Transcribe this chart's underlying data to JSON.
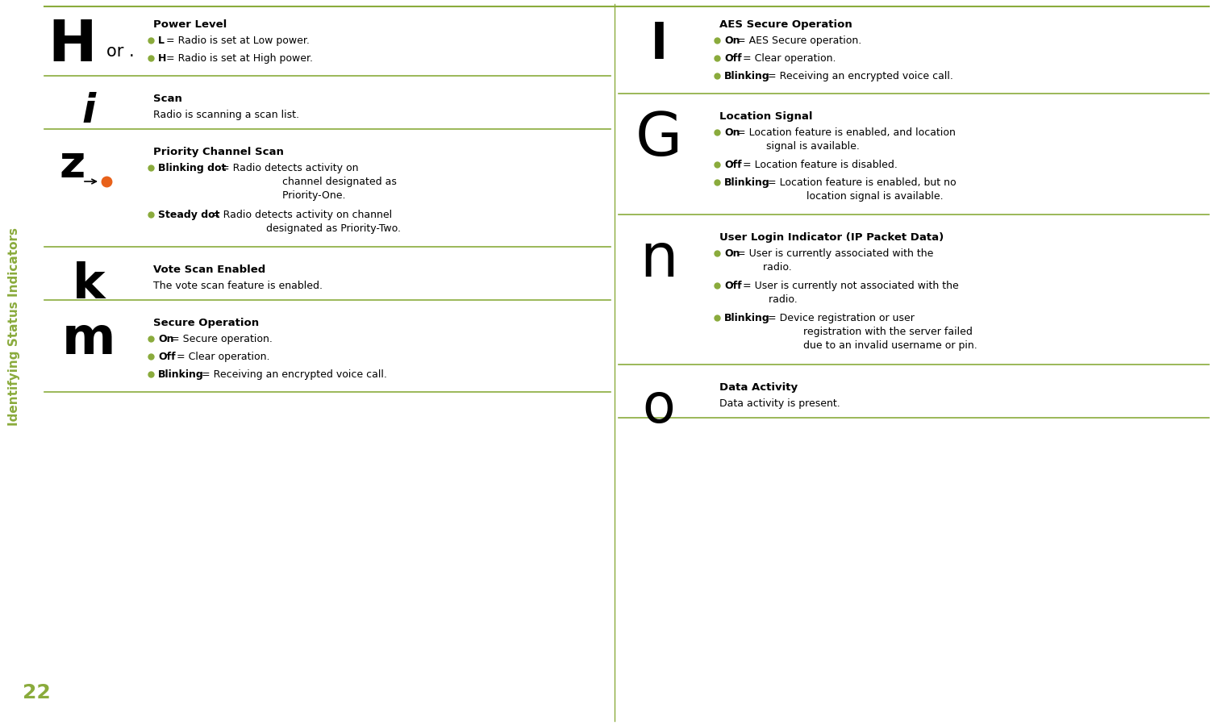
{
  "bg_color": "#ffffff",
  "green_color": "#8aab3c",
  "black_color": "#000000",
  "orange_color": "#e8611a",
  "sidebar_text": "Identifying Status Indicators",
  "page_number": "22",
  "figw": 15.09,
  "figh": 8.99,
  "dpi": 100,
  "left_entries": [
    {
      "icon": "H",
      "icon2": "or .",
      "icon_size": 52,
      "icon2_size": 16,
      "icon_bold": true,
      "title": "Power Level",
      "items": [
        {
          "bold": "L",
          "text": " = Radio is set at Low power."
        },
        {
          "bold": "H",
          "text": " = Radio is set at High power."
        }
      ]
    },
    {
      "icon": "i",
      "icon2": null,
      "icon_size": 36,
      "icon2_size": 0,
      "icon_bold": false,
      "title": "Scan",
      "plain": "Radio is scanning a scan list.",
      "items": []
    },
    {
      "icon": "z",
      "icon2": "dot",
      "icon_size": 40,
      "icon2_size": 0,
      "icon_bold": true,
      "title": "Priority Channel Scan",
      "items": [
        {
          "bold": "Blinking dot",
          "text": " = Radio detects activity on\n                    channel designated as\n                    Priority-One."
        },
        {
          "bold": "Steady dot",
          "text": " = Radio detects activity on channel\n                  designated as Priority-Two."
        }
      ]
    },
    {
      "icon": "k",
      "icon2": null,
      "icon_size": 40,
      "icon2_size": 0,
      "icon_bold": false,
      "title": "Vote Scan Enabled",
      "plain": "The vote scan feature is enabled.",
      "items": []
    },
    {
      "icon": "m",
      "icon2": null,
      "icon_size": 44,
      "icon2_size": 0,
      "icon_bold": false,
      "title": "Secure Operation",
      "items": [
        {
          "bold": "On",
          "text": " = Secure operation."
        },
        {
          "bold": "Off",
          "text": " = Clear operation."
        },
        {
          "bold": "Blinking",
          "text": " = Receiving an encrypted voice call."
        }
      ]
    }
  ],
  "right_entries": [
    {
      "icon": "l",
      "icon_size": 44,
      "icon_bold": false,
      "title": "AES Secure Operation",
      "items": [
        {
          "bold": "On",
          "text": " = AES Secure operation."
        },
        {
          "bold": "Off",
          "text": " = Clear operation."
        },
        {
          "bold": "Blinking",
          "text": " = Receiving an encrypted voice call."
        }
      ]
    },
    {
      "icon": "G",
      "icon_size": 52,
      "icon_bold": false,
      "title": "Location Signal",
      "items": [
        {
          "bold": "On",
          "text": " = Location feature is enabled, and location\n          signal is available."
        },
        {
          "bold": "Off",
          "text": " = Location feature is disabled."
        },
        {
          "bold": "Blinking",
          "text": " = Location feature is enabled, but no\n             location signal is available."
        }
      ]
    },
    {
      "icon": "n",
      "icon_size": 52,
      "icon_bold": false,
      "title": "User Login Indicator (IP Packet Data)",
      "items": [
        {
          "bold": "On",
          "text": " = User is currently associated with the\n         radio."
        },
        {
          "bold": "Off",
          "text": " = User is currently not associated with the\n         radio."
        },
        {
          "bold": "Blinking",
          "text": " = Device registration or user\n            registration with the server failed\n            due to an invalid username or pin."
        }
      ]
    },
    {
      "icon": "o",
      "icon_size": 44,
      "icon_bold": false,
      "title": "Data Activity",
      "plain": "Data activity is present.",
      "items": []
    }
  ]
}
